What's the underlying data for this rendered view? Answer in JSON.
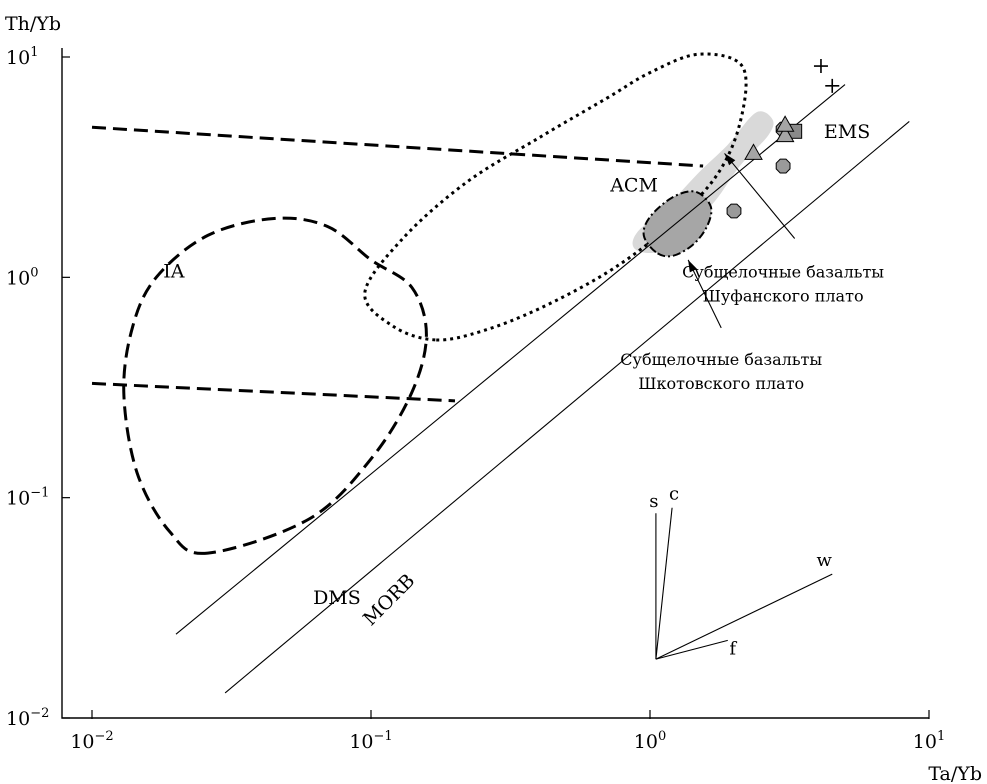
{
  "chart_data": {
    "type": "scatter",
    "xlabel": "Ta/Yb",
    "ylabel": "Th/Yb",
    "x_scale": "log",
    "y_scale": "log",
    "xlim": [
      0.01,
      10
    ],
    "ylim": [
      0.01,
      10
    ],
    "x_ticks": [
      {
        "base": "10",
        "exp": "−2",
        "value": 0.01
      },
      {
        "base": "10",
        "exp": "−1",
        "value": 0.1
      },
      {
        "base": "10",
        "exp": "0",
        "value": 1
      },
      {
        "base": "10",
        "exp": "1",
        "value": 10
      }
    ],
    "y_ticks": [
      {
        "base": "10",
        "exp": "−2",
        "value": 0.01
      },
      {
        "base": "10",
        "exp": "−1",
        "value": 0.1
      },
      {
        "base": "10",
        "exp": "0",
        "value": 1
      },
      {
        "base": "10",
        "exp": "1",
        "value": 10
      }
    ],
    "grid": false,
    "regions": [
      {
        "label": "IA",
        "style": "long-dashed",
        "label_x": 0.018,
        "label_y": 1.0,
        "points": [
          [
            0.026,
            0.056
          ],
          [
            0.019,
            0.07
          ],
          [
            0.0145,
            0.13
          ],
          [
            0.013,
            0.3
          ],
          [
            0.014,
            0.6
          ],
          [
            0.017,
            1.0
          ],
          [
            0.026,
            1.55
          ],
          [
            0.045,
            1.85
          ],
          [
            0.07,
            1.7
          ],
          [
            0.1,
            1.2
          ],
          [
            0.14,
            0.9
          ],
          [
            0.158,
            0.55
          ],
          [
            0.14,
            0.3
          ],
          [
            0.1,
            0.15
          ],
          [
            0.06,
            0.08
          ]
        ]
      },
      {
        "label": "ACM",
        "style": "dotted",
        "label_x": 0.72,
        "label_y": 2.45,
        "points": [
          [
            0.17,
            0.52
          ],
          [
            0.12,
            0.6
          ],
          [
            0.095,
            0.85
          ],
          [
            0.13,
            1.5
          ],
          [
            0.22,
            2.7
          ],
          [
            0.4,
            4.3
          ],
          [
            0.7,
            6.5
          ],
          [
            1.0,
            8.5
          ],
          [
            1.5,
            10.3
          ],
          [
            2.15,
            9.0
          ],
          [
            2.1,
            5.0
          ],
          [
            1.7,
            2.8
          ],
          [
            1.1,
            1.6
          ],
          [
            0.7,
            1.05
          ],
          [
            0.4,
            0.72
          ],
          [
            0.25,
            0.57
          ]
        ]
      },
      {
        "label": "",
        "style": "dash-dot",
        "fill": "#a6a6a6",
        "points": [
          [
            1.05,
            1.3
          ],
          [
            0.95,
            1.55
          ],
          [
            1.0,
            1.88
          ],
          [
            1.2,
            2.3
          ],
          [
            1.45,
            2.45
          ],
          [
            1.65,
            2.1
          ],
          [
            1.6,
            1.7
          ],
          [
            1.42,
            1.4
          ],
          [
            1.2,
            1.25
          ]
        ]
      },
      {
        "label": "",
        "style": "none",
        "fill": "#d9d9d9",
        "points": [
          [
            0.88,
            1.35
          ],
          [
            0.9,
            1.6
          ],
          [
            1.15,
            2.1
          ],
          [
            1.5,
            3.0
          ],
          [
            1.9,
            4.0
          ],
          [
            2.4,
            5.6
          ],
          [
            2.75,
            5.2
          ],
          [
            2.65,
            4.4
          ],
          [
            2.1,
            3.2
          ],
          [
            1.7,
            2.2
          ],
          [
            1.3,
            1.55
          ],
          [
            1.05,
            1.3
          ]
        ]
      }
    ],
    "dashed_lines": [
      {
        "points": [
          [
            0.01,
            4.8
          ],
          [
            1.55,
            3.2
          ]
        ]
      },
      {
        "points": [
          [
            0.01,
            0.33
          ],
          [
            0.2,
            0.275
          ]
        ]
      }
    ],
    "lines": [
      {
        "points": [
          [
            0.02,
            0.024
          ],
          [
            5.0,
            7.5
          ]
        ]
      },
      {
        "points": [
          [
            0.03,
            0.013
          ],
          [
            8.5,
            5.1
          ]
        ]
      }
    ],
    "line_labels": [
      {
        "label": "DMS",
        "x": 0.062,
        "y": 0.033,
        "rotate": 0
      },
      {
        "label": "MORB",
        "x": 0.1,
        "y": 0.026,
        "rotate": -45
      },
      {
        "label": "EMS",
        "x": 4.2,
        "y": 4.3,
        "rotate": 0
      }
    ],
    "series": [
      {
        "name": "",
        "marker": "circle",
        "color": "#9a9a9a",
        "x": [
          2.0,
          3.0,
          3.0
        ],
        "y": [
          2.0,
          3.2,
          4.7
        ]
      },
      {
        "name": "",
        "marker": "square",
        "color": "#8a8a8a",
        "x": [
          3.3
        ],
        "y": [
          4.6
        ]
      },
      {
        "name": "",
        "marker": "triangle",
        "color": "#a5a5a5",
        "x": [
          2.35,
          3.05,
          3.05
        ],
        "y": [
          3.65,
          4.4,
          4.9
        ]
      },
      {
        "name": "",
        "marker": "plus",
        "color": "#000000",
        "x": [
          4.1,
          4.5
        ],
        "y": [
          9.1,
          7.4
        ]
      }
    ],
    "annotations": [
      {
        "id": "shufan",
        "lines": [
          "Субщелочные базальты",
          "Шуфанского плато"
        ],
        "text_x": 3.0,
        "text_y": 1.0,
        "arrow_from": [
          3.3,
          1.5
        ],
        "arrow_to": [
          1.85,
          3.65
        ]
      },
      {
        "id": "shkotov",
        "lines": [
          "Субщелочные базальты",
          "Шкотовского плато"
        ],
        "text_x": 1.8,
        "text_y": 0.4,
        "arrow_from": [
          1.8,
          0.59
        ],
        "arrow_to": [
          1.37,
          1.2
        ]
      }
    ],
    "vectors": {
      "origin": [
        1.05,
        0.0185
      ],
      "items": [
        {
          "label": "s",
          "tip": [
            1.05,
            0.085
          ]
        },
        {
          "label": "c",
          "tip": [
            1.2,
            0.09
          ]
        },
        {
          "label": "w",
          "tip": [
            4.5,
            0.045
          ]
        },
        {
          "label": "f",
          "tip": [
            1.9,
            0.0225
          ]
        }
      ]
    }
  }
}
